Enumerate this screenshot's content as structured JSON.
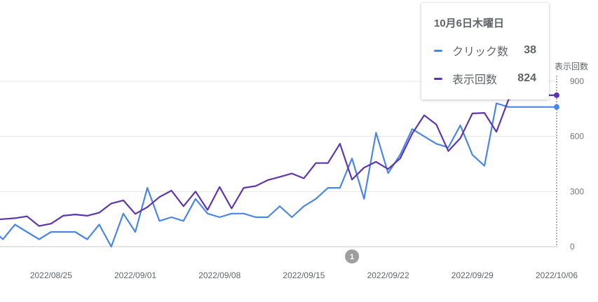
{
  "tooltip": {
    "date": "10月6日木曜日",
    "rows": [
      {
        "name": "クリック数",
        "value": "38",
        "color": "#4a86e8"
      },
      {
        "name": "表示回数",
        "value": "824",
        "color": "#5e35b1"
      }
    ]
  },
  "chart_data": {
    "type": "line",
    "y_axis_right_title": "表示回数",
    "ylim": [
      0,
      900
    ],
    "yticks": [
      "0",
      "300",
      "600",
      "900"
    ],
    "xtick_labels": [
      "2022/08/25",
      "2022/09/01",
      "2022/09/08",
      "2022/09/15",
      "2022/09/22",
      "2022/09/29",
      "2022/10/06"
    ],
    "annotation": {
      "label": "1",
      "date": "2022/09/19"
    },
    "grid": true,
    "x_start": "2022/08/20",
    "x_end": "2022/10/06",
    "series": [
      {
        "name": "クリック数",
        "color": "#4a86e8",
        "axis": "left",
        "values": [
          100,
          40,
          120,
          80,
          40,
          80,
          80,
          80,
          40,
          120,
          0,
          180,
          80,
          320,
          140,
          160,
          140,
          260,
          180,
          160,
          180,
          180,
          160,
          160,
          220,
          160,
          220,
          260,
          320,
          320,
          480,
          260,
          620,
          400,
          500,
          640,
          600,
          560,
          540,
          660,
          500,
          440,
          780,
          760,
          760,
          760,
          760,
          760
        ]
      },
      {
        "name": "表示回数",
        "color": "#5e35b1",
        "axis": "right",
        "values": [
          145,
          150,
          155,
          165,
          112,
          125,
          168,
          175,
          168,
          185,
          235,
          252,
          178,
          215,
          270,
          305,
          220,
          300,
          200,
          325,
          208,
          320,
          330,
          362,
          380,
          398,
          372,
          455,
          455,
          560,
          365,
          430,
          462,
          422,
          480,
          615,
          715,
          665,
          520,
          590,
          725,
          728,
          625,
          800,
          824,
          824,
          824,
          824
        ]
      }
    ]
  }
}
